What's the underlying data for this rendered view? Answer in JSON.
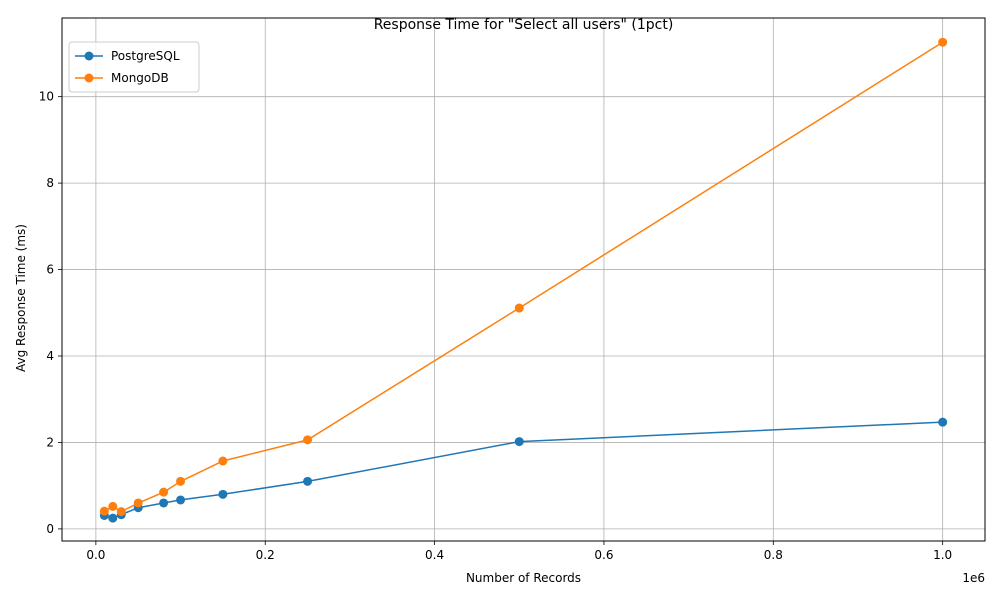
{
  "chart_data": {
    "type": "line",
    "title": "Response Time for \"Select all users\" (1pct)",
    "xlabel": "Number of Records",
    "ylabel": "Avg Response Time (ms)",
    "x_offset_label": "1e6",
    "xlim": [
      -0.04,
      1.05
    ],
    "ylim": [
      -0.28,
      11.82
    ],
    "x_ticks": [
      0.0,
      0.2,
      0.4,
      0.6,
      0.8,
      1.0
    ],
    "x_tick_labels": [
      "0.0",
      "0.2",
      "0.4",
      "0.6",
      "0.8",
      "1.0"
    ],
    "y_ticks": [
      0,
      2,
      4,
      6,
      8,
      10
    ],
    "y_tick_labels": [
      "0",
      "2",
      "4",
      "6",
      "8",
      "10"
    ],
    "grid": true,
    "legend_position": "top-left",
    "x": [
      10000,
      20000,
      30000,
      50000,
      80000,
      100000,
      150000,
      250000,
      500000,
      1000000
    ],
    "series": [
      {
        "name": "PostgreSQL",
        "color": "#1f77b4",
        "values": [
          0.31,
          0.25,
          0.33,
          0.49,
          0.6,
          0.67,
          0.8,
          1.1,
          2.02,
          2.47
        ]
      },
      {
        "name": "MongoDB",
        "color": "#ff7f0e",
        "values": [
          0.41,
          0.52,
          0.4,
          0.6,
          0.85,
          1.1,
          1.57,
          2.06,
          5.11,
          11.26
        ]
      }
    ]
  }
}
